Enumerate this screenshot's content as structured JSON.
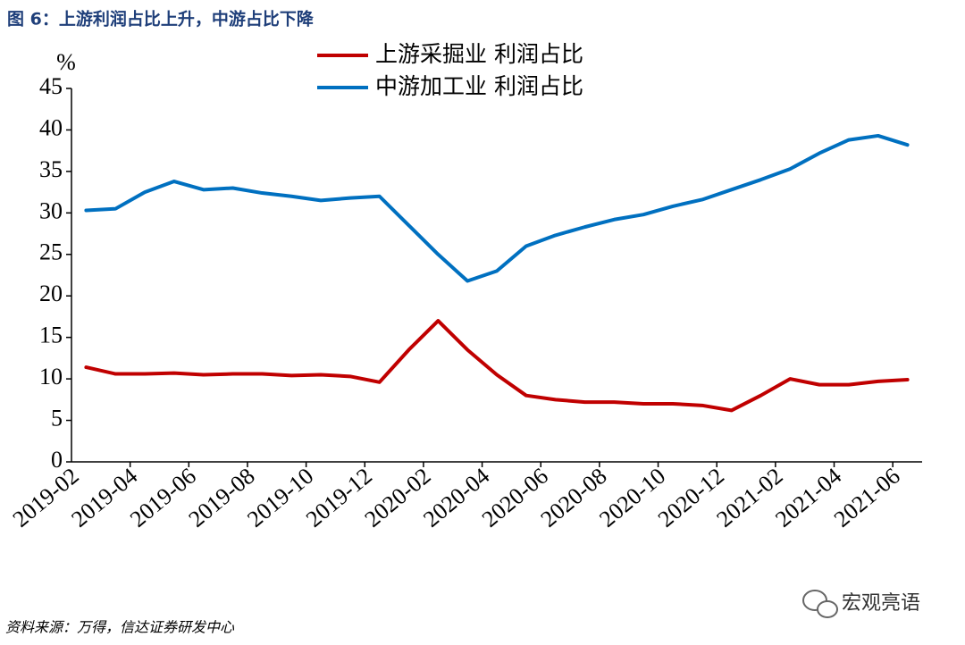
{
  "chart_data": {
    "type": "line",
    "title": "图 6：上游利润占比上升，中游占比下降",
    "y_label": "%",
    "source": "资料来源：万得，信达证券研发中心",
    "watermark": "宏观亮语",
    "categories": [
      "2019-02",
      null,
      "2019-04",
      null,
      "2019-06",
      null,
      "2019-08",
      null,
      "2019-10",
      null,
      "2019-12",
      null,
      "2020-02",
      null,
      "2020-04",
      null,
      "2020-06",
      null,
      "2020-08",
      null,
      "2020-10",
      null,
      "2020-12",
      null,
      "2021-02",
      null,
      "2021-04",
      null,
      "2021-06"
    ],
    "series": [
      {
        "name": "上游采掘业 利润占比",
        "color": "#c00000",
        "values": [
          11.4,
          10.6,
          10.6,
          10.7,
          10.5,
          10.6,
          10.6,
          10.4,
          10.5,
          10.3,
          9.6,
          13.5,
          17.0,
          13.5,
          10.5,
          8.0,
          7.5,
          7.2,
          7.2,
          7.0,
          7.0,
          6.8,
          6.2,
          8.0,
          10.0,
          9.3,
          9.3,
          9.7,
          9.9
        ]
      },
      {
        "name": "中游加工业 利润占比",
        "color": "#0070c0",
        "values": [
          30.3,
          30.5,
          32.5,
          33.8,
          32.8,
          33.0,
          32.4,
          32.0,
          31.5,
          31.8,
          32.0,
          28.5,
          25.0,
          21.8,
          23.0,
          26.0,
          27.3,
          28.3,
          29.2,
          29.8,
          30.8,
          31.6,
          32.8,
          34.0,
          35.3,
          37.2,
          38.8,
          39.3,
          38.2
        ]
      }
    ],
    "ylim": [
      0,
      45
    ],
    "yticks": [
      0,
      5,
      10,
      15,
      20,
      25,
      30,
      35,
      40,
      45
    ],
    "legend": "top"
  }
}
